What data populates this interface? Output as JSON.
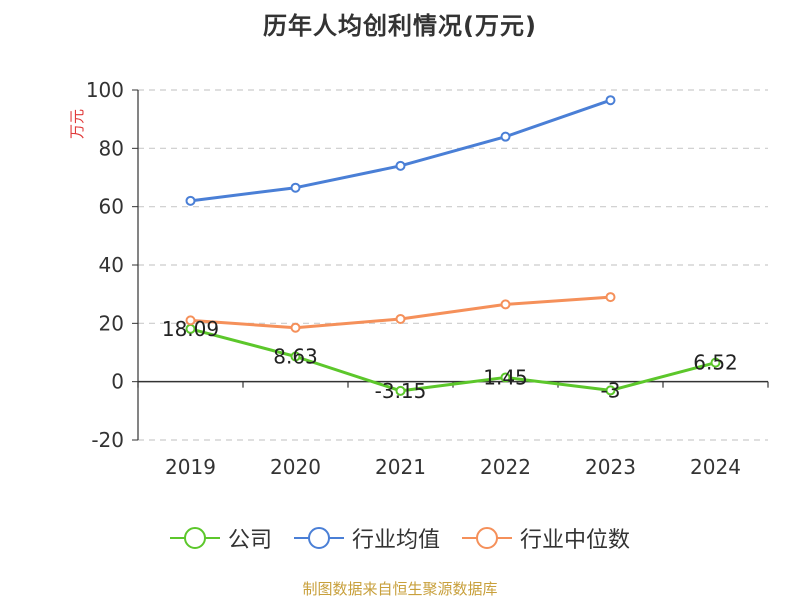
{
  "title": "历年人均创利情况(万元)",
  "source": "制图数据来自恒生聚源数据库",
  "chart_data": {
    "type": "line",
    "categories": [
      "2019",
      "2020",
      "2021",
      "2022",
      "2023",
      "2024"
    ],
    "ylabel": "万元",
    "ylim": [
      -20,
      100
    ],
    "yticks": [
      -20,
      0,
      20,
      40,
      60,
      80,
      100
    ],
    "grid": true,
    "legend_position": "bottom",
    "series": [
      {
        "name": "公司",
        "color": "#5cc72b",
        "values": [
          18.09,
          8.63,
          -3.15,
          1.45,
          -3,
          6.52
        ],
        "labels": [
          "18.09",
          "8.63",
          "-3.15",
          "1.45",
          "-3",
          "6.52"
        ]
      },
      {
        "name": "行业均值",
        "color": "#4a7fd6",
        "values": [
          62,
          66.5,
          74,
          84,
          96.5,
          null
        ]
      },
      {
        "name": "行业中位数",
        "color": "#f5905a",
        "values": [
          21,
          18.5,
          21.5,
          26.5,
          29,
          null
        ]
      }
    ],
    "colors": {
      "axis": "#333333",
      "grid": "#cccccc",
      "ylabel": "#e03a3a"
    }
  }
}
